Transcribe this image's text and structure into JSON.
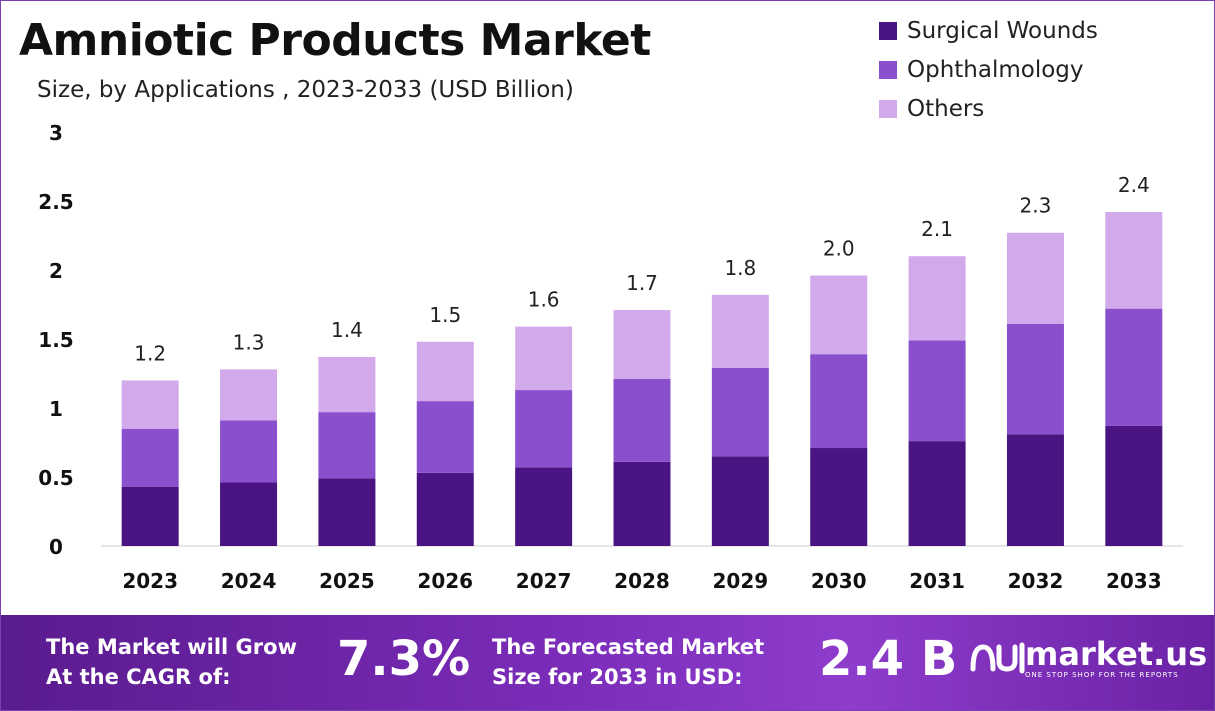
{
  "header": {
    "title": "Amniotic Products Market",
    "subtitle": "Size, by Applications , 2023-2033 (USD Billion)"
  },
  "legend": [
    {
      "label": "Surgical Wounds",
      "color": "#4a1582"
    },
    {
      "label": "Ophthalmology",
      "color": "#8a4fcc"
    },
    {
      "label": "Others",
      "color": "#d2aaeb"
    }
  ],
  "chart_data": {
    "type": "bar",
    "stacked": true,
    "categories": [
      "2023",
      "2024",
      "2025",
      "2026",
      "2027",
      "2028",
      "2029",
      "2030",
      "2031",
      "2032",
      "2033"
    ],
    "series": [
      {
        "name": "Surgical Wounds",
        "color": "#4a1582",
        "values": [
          0.43,
          0.46,
          0.49,
          0.53,
          0.57,
          0.61,
          0.65,
          0.71,
          0.76,
          0.81,
          0.87
        ]
      },
      {
        "name": "Ophthalmology",
        "color": "#8a4fcc",
        "values": [
          0.42,
          0.45,
          0.48,
          0.52,
          0.56,
          0.6,
          0.64,
          0.68,
          0.73,
          0.8,
          0.85
        ]
      },
      {
        "name": "Others",
        "color": "#d2aaeb",
        "values": [
          0.35,
          0.37,
          0.4,
          0.43,
          0.46,
          0.5,
          0.53,
          0.57,
          0.61,
          0.66,
          0.7
        ]
      }
    ],
    "totals": [
      "1.2",
      "1.3",
      "1.4",
      "1.5",
      "1.6",
      "1.7",
      "1.8",
      "2.0",
      "2.1",
      "2.3",
      "2.4"
    ],
    "ylim": [
      0,
      3
    ],
    "yticks": [
      "0",
      "0.5",
      "1",
      "1.5",
      "2",
      "2.5",
      "3"
    ],
    "grid": false,
    "legend_position": "top-right"
  },
  "footer": {
    "cagr_text_line1": "The Market will Grow",
    "cagr_text_line2": "At the CAGR of:",
    "cagr_value": "7.3%",
    "forecast_text_line1": "The Forecasted Market",
    "forecast_text_line2": "Size for 2033 in USD:",
    "forecast_value": "2.4 B",
    "brand": "market.us",
    "brand_tagline": "ONE STOP SHOP FOR THE REPORTS"
  }
}
